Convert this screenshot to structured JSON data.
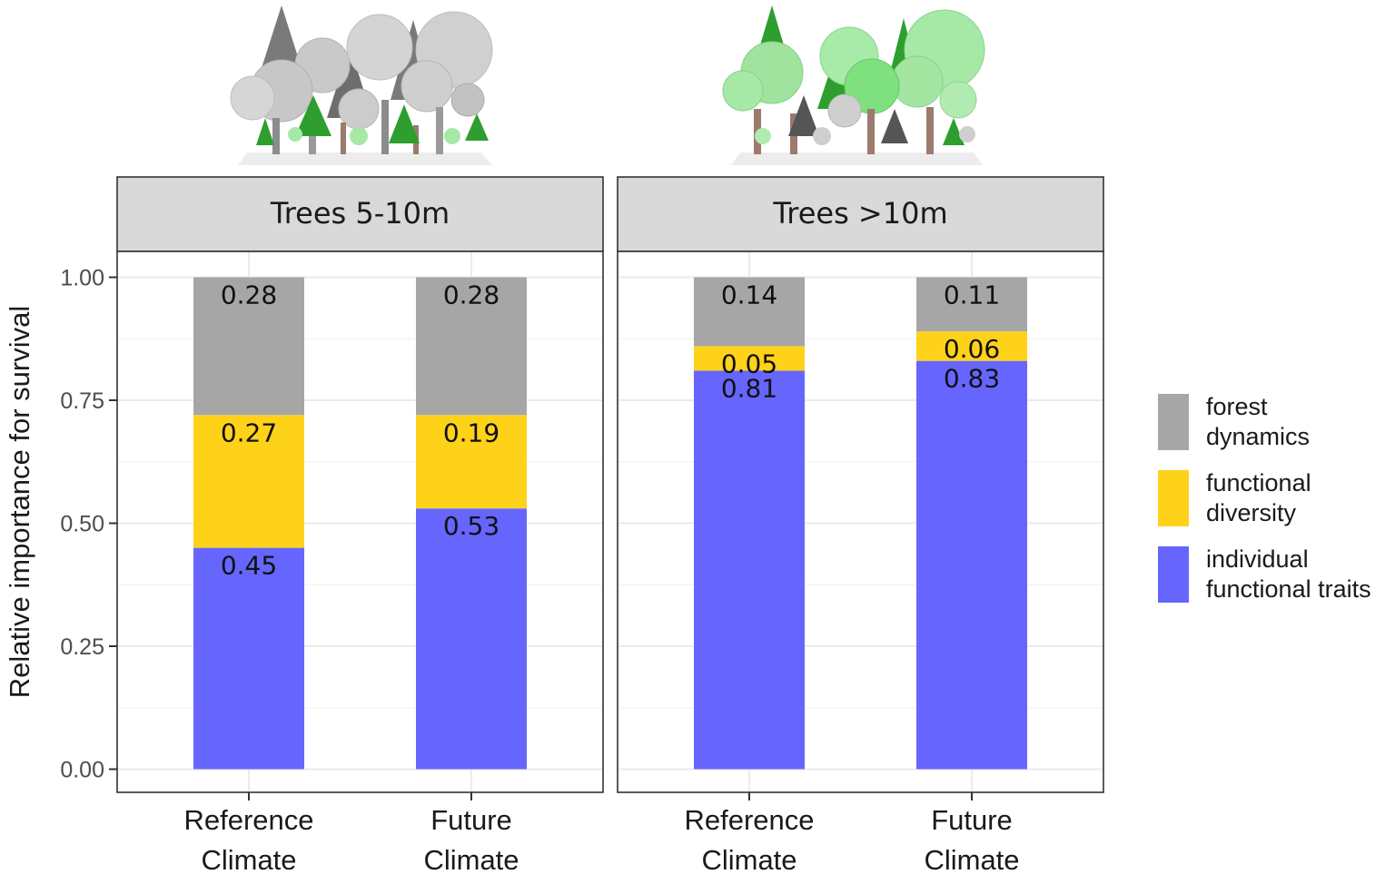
{
  "chart_data": {
    "type": "bar",
    "stacked": true,
    "ylabel": "Relative importance for survival",
    "ylim": [
      0,
      1
    ],
    "yticks": [
      "0.00",
      "0.25",
      "0.50",
      "0.75",
      "1.00"
    ],
    "ytick_values": [
      0,
      0.25,
      0.5,
      0.75,
      1.0
    ],
    "grid": true,
    "legend_position": "right",
    "panels": [
      {
        "title": "Trees 5-10m",
        "categories": [
          [
            "Reference",
            "Climate"
          ],
          [
            "Future",
            "Climate"
          ]
        ],
        "series": [
          {
            "name": "individual functional traits",
            "values": [
              0.45,
              0.53
            ],
            "labels": [
              "0.45",
              "0.53"
            ]
          },
          {
            "name": "functional diversity",
            "values": [
              0.27,
              0.19
            ],
            "labels": [
              "0.27",
              "0.19"
            ]
          },
          {
            "name": "forest dynamics",
            "values": [
              0.28,
              0.28
            ],
            "labels": [
              "0.28",
              "0.28"
            ]
          }
        ]
      },
      {
        "title": "Trees >10m",
        "categories": [
          [
            "Reference",
            "Climate"
          ],
          [
            "Future",
            "Climate"
          ]
        ],
        "series": [
          {
            "name": "individual functional traits",
            "values": [
              0.81,
              0.83
            ],
            "labels": [
              "0.81",
              "0.83"
            ]
          },
          {
            "name": "functional diversity",
            "values": [
              0.05,
              0.06
            ],
            "labels": [
              "0.05",
              "0.06"
            ]
          },
          {
            "name": "forest dynamics",
            "values": [
              0.14,
              0.11
            ],
            "labels": [
              "0.14",
              "0.11"
            ]
          }
        ]
      }
    ],
    "legend": [
      {
        "lines": [
          "forest",
          "dynamics"
        ],
        "color": "#A6A6A6"
      },
      {
        "lines": [
          "functional",
          "diversity"
        ],
        "color": "#FFD21A"
      },
      {
        "lines": [
          "individual",
          "functional traits"
        ],
        "color": "#6666FF"
      }
    ],
    "colors": {
      "individual functional traits": "#6666FF",
      "functional diversity": "#FFD21A",
      "forest dynamics": "#A6A6A6",
      "strip_background": "#D9D9D9",
      "grid": "#EBEBEB"
    }
  }
}
